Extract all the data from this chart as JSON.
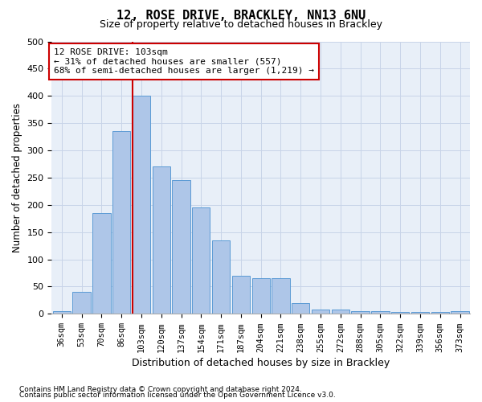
{
  "title": "12, ROSE DRIVE, BRACKLEY, NN13 6NU",
  "subtitle": "Size of property relative to detached houses in Brackley",
  "xlabel": "Distribution of detached houses by size in Brackley",
  "ylabel": "Number of detached properties",
  "footnote1": "Contains HM Land Registry data © Crown copyright and database right 2024.",
  "footnote2": "Contains public sector information licensed under the Open Government Licence v3.0.",
  "categories": [
    "36sqm",
    "53sqm",
    "70sqm",
    "86sqm",
    "103sqm",
    "120sqm",
    "137sqm",
    "154sqm",
    "171sqm",
    "187sqm",
    "204sqm",
    "221sqm",
    "238sqm",
    "255sqm",
    "272sqm",
    "288sqm",
    "305sqm",
    "322sqm",
    "339sqm",
    "356sqm",
    "373sqm"
  ],
  "values": [
    5,
    40,
    185,
    335,
    400,
    270,
    245,
    195,
    135,
    70,
    65,
    65,
    20,
    8,
    8,
    5,
    5,
    4,
    4,
    3,
    5
  ],
  "bar_color": "#aec6e8",
  "bar_edge_color": "#5b9bd5",
  "grid_color": "#c8d4e8",
  "bg_color": "#e8eff8",
  "vline_color": "#cc0000",
  "vline_index": 4,
  "annotation_text": "12 ROSE DRIVE: 103sqm\n← 31% of detached houses are smaller (557)\n68% of semi-detached houses are larger (1,219) →",
  "annotation_box_edgecolor": "#cc0000",
  "ylim": [
    0,
    500
  ],
  "yticks": [
    0,
    50,
    100,
    150,
    200,
    250,
    300,
    350,
    400,
    450,
    500
  ]
}
